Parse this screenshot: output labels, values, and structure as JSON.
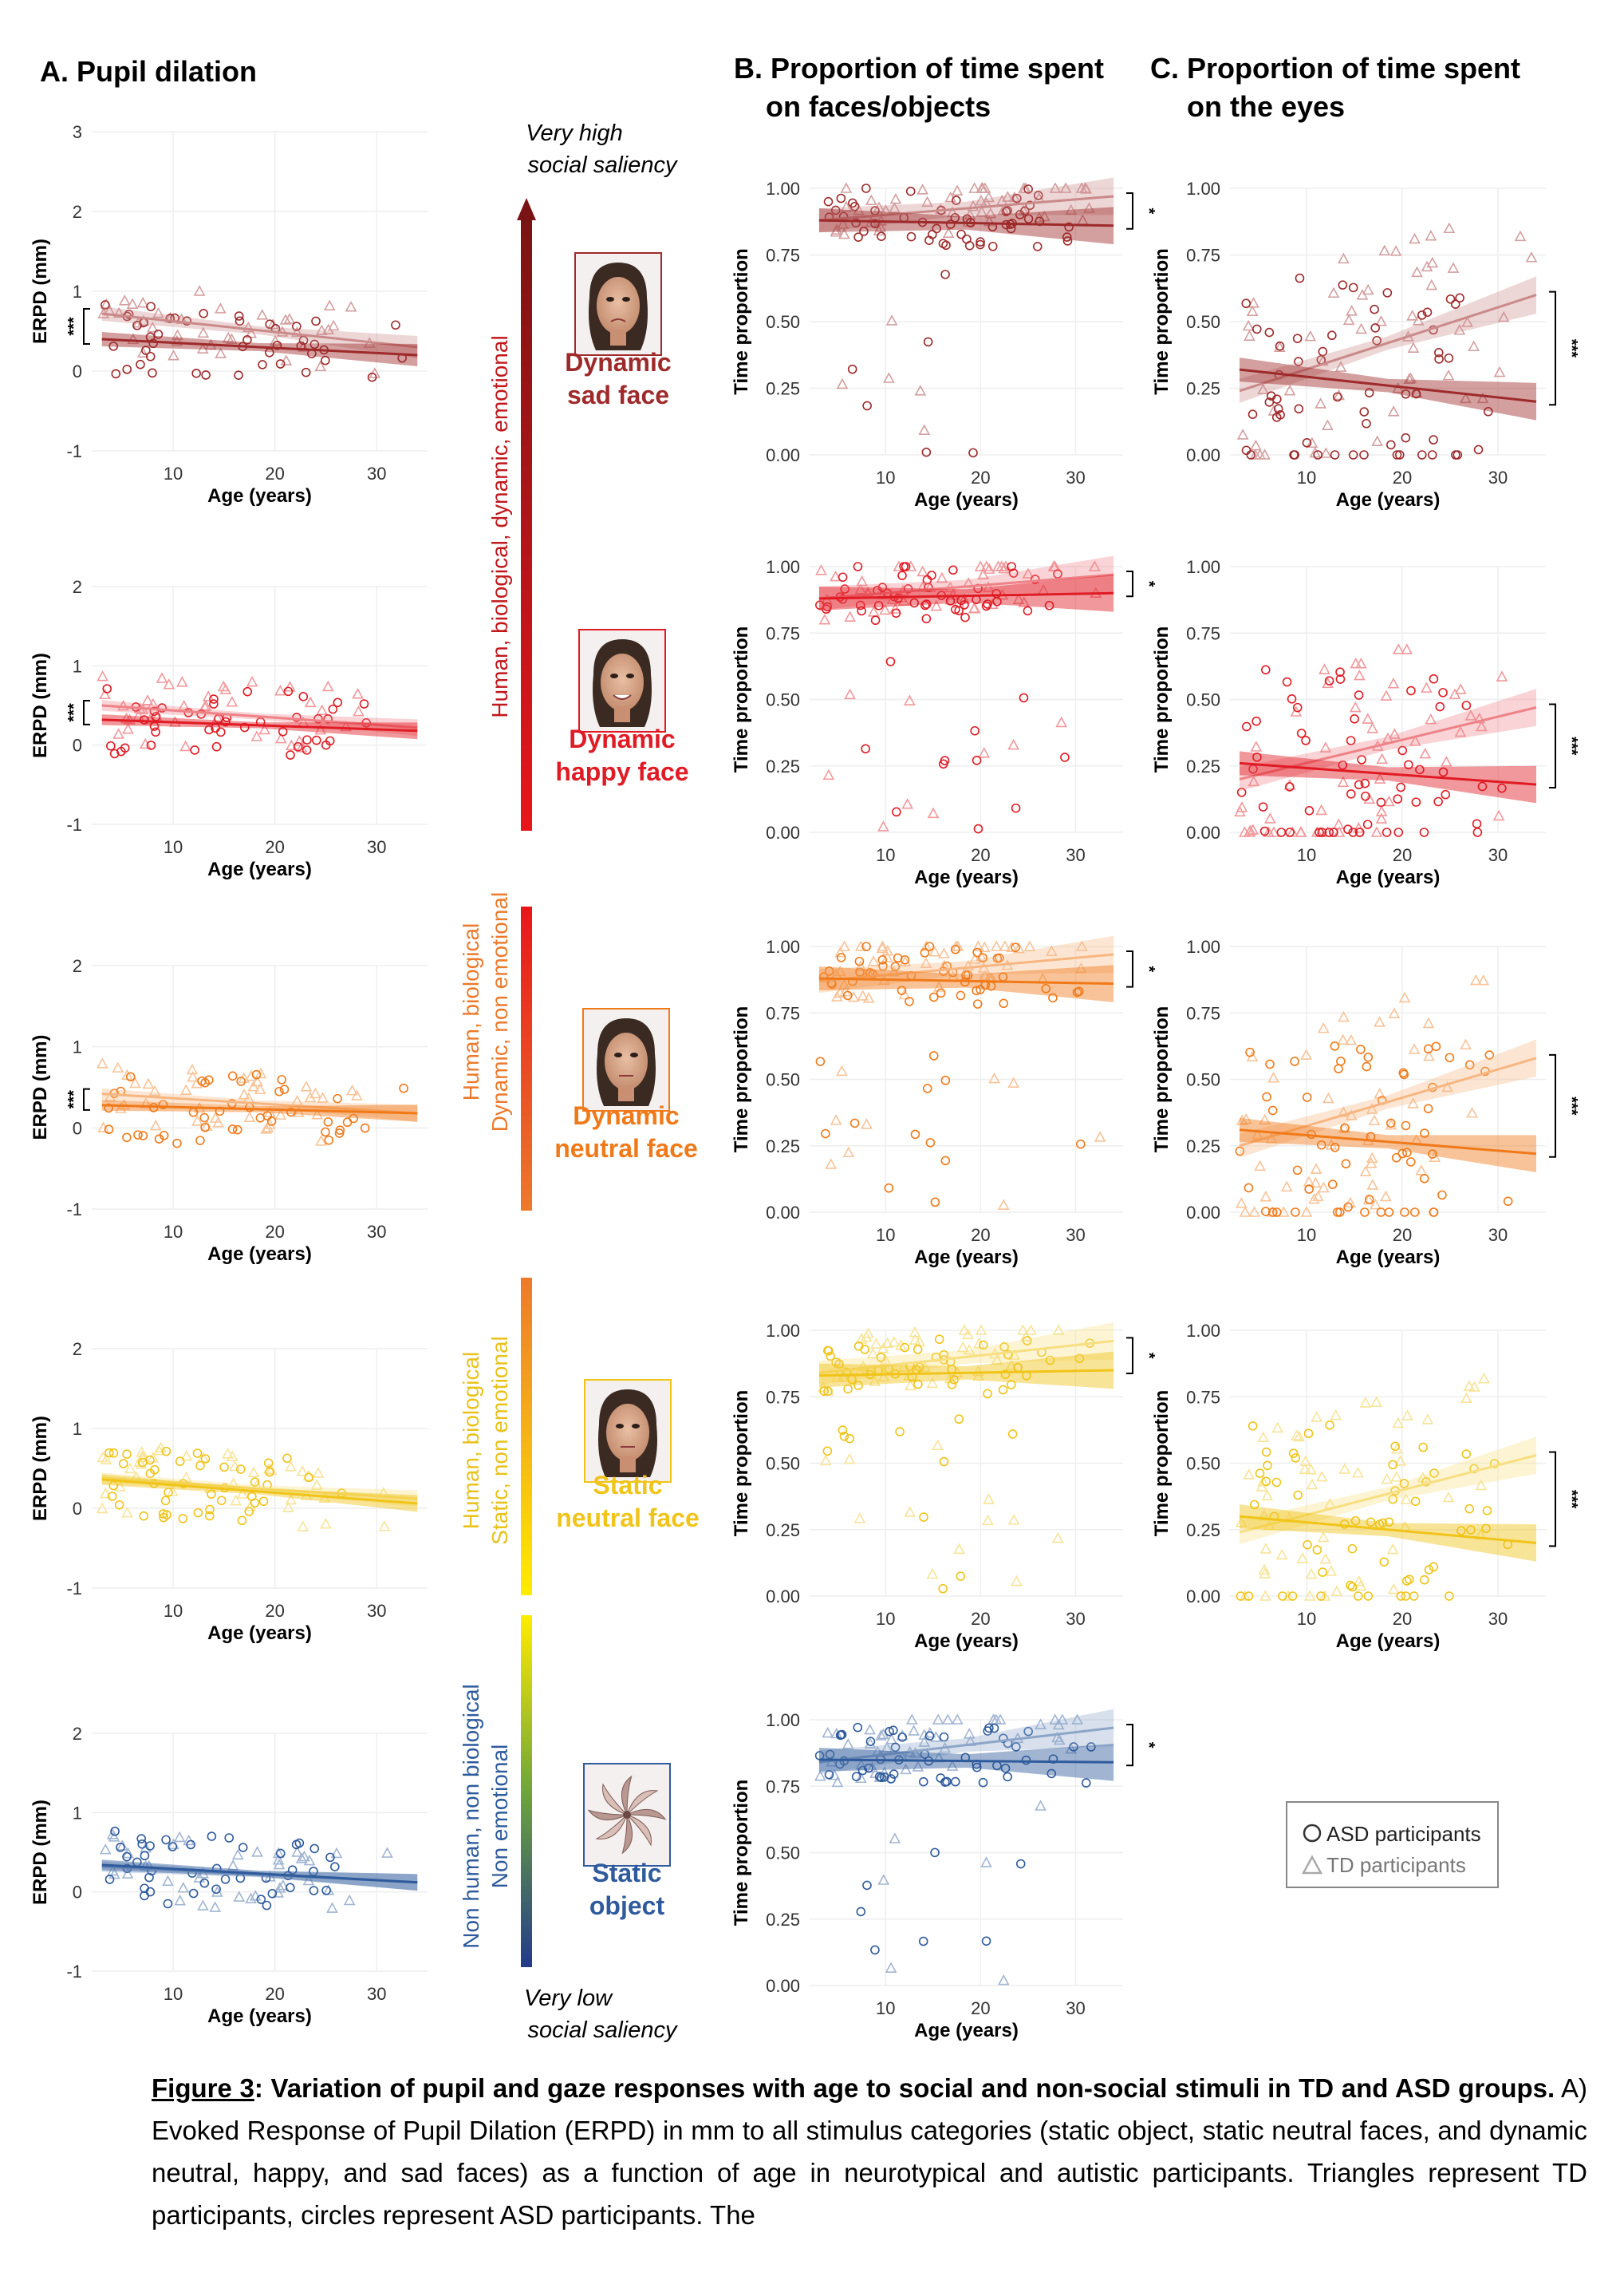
{
  "titles": {
    "a": "A. Pupil dilation",
    "b_line1": "B. Proportion of time spent",
    "b_line2": "on faces/objects",
    "c_line1": "C. Proportion of time spent",
    "c_line2": "on the eyes"
  },
  "axes": {
    "age_label": "Age (years)",
    "erpd_label": "ERPD (mm)",
    "time_label": "Time proportion",
    "age_ticks": [
      "10",
      "20",
      "30"
    ],
    "erpd_ticks": [
      "-1",
      "0",
      "1",
      "2",
      "3"
    ],
    "time_ticks": [
      "0.00",
      "0.25",
      "0.50",
      "0.75",
      "1.00"
    ]
  },
  "axis_ranges": {
    "age": [
      2,
      35
    ],
    "time": [
      0,
      1
    ]
  },
  "saliency": {
    "top_line1": "Very high",
    "top_line2": "social saliency",
    "bottom_line1": "Very low",
    "bottom_line2": "social saliency",
    "bar_labels": [
      [
        "Human, biological, dynamic, emotional"
      ],
      [
        "Human, biological",
        "Dynamic, non emotional"
      ],
      [
        "Human, biological",
        "Static, non emotional"
      ],
      [
        "Non human, non biological",
        "Non emotional"
      ]
    ]
  },
  "stimuli": [
    {
      "line1": "Dynamic",
      "line2": "sad face",
      "color": "#9e2a2b",
      "icon": "sad-face-icon"
    },
    {
      "line1": "Dynamic",
      "line2": "happy face",
      "color": "#e01b24",
      "icon": "happy-face-icon"
    },
    {
      "line1": "Dynamic",
      "line2": "neutral face",
      "color": "#f07a1a",
      "icon": "neutral-face-icon"
    },
    {
      "line1": "Static",
      "line2": "neutral face",
      "color": "#f0c419",
      "icon": "static-face-icon"
    },
    {
      "line1": "Static",
      "line2": "object",
      "color": "#2f5b9c",
      "icon": "pinwheel-icon"
    }
  ],
  "legend": {
    "asd": "ASD participants",
    "td": "TD participants"
  },
  "caption": {
    "label": "Figure 3",
    "bold": ": Variation of pupil and gaze responses with age to social and non-social stimuli in TD and ASD groups.",
    "text": " A) Evoked Response of Pupil Dilation (ERPD) in mm to all stimulus categories (static object, static neutral faces, and dynamic neutral, happy, and sad faces) as a function of age in neurotypical and autistic participants. Triangles represent TD participants, circles represent ASD participants. The"
  },
  "chart_data": [
    {
      "type": "scatter",
      "panel": "A",
      "stimulus": "Dynamic sad face",
      "ylabel": "ERPD (mm)",
      "xlabel": "Age (years)",
      "ylim": [
        -1,
        3
      ],
      "x_ticks": [
        10,
        20,
        30
      ],
      "y_ticks": [
        -1,
        0,
        1,
        2,
        3
      ],
      "significance": "***",
      "series": [
        {
          "name": "TD participants",
          "marker": "triangle",
          "fit": [
            [
              3,
              0.72
            ],
            [
              34,
              0.3
            ]
          ]
        },
        {
          "name": "ASD participants",
          "marker": "circle",
          "fit": [
            [
              3,
              0.4
            ],
            [
              34,
              0.2
            ]
          ]
        }
      ]
    },
    {
      "type": "scatter",
      "panel": "A",
      "stimulus": "Dynamic happy face",
      "ylabel": "ERPD (mm)",
      "xlabel": "Age (years)",
      "ylim": [
        -1,
        2
      ],
      "x_ticks": [
        10,
        20,
        30
      ],
      "y_ticks": [
        -1,
        0,
        1,
        2
      ],
      "significance": "***",
      "series": [
        {
          "name": "TD participants",
          "marker": "triangle",
          "fit": [
            [
              3,
              0.5
            ],
            [
              34,
              0.22
            ]
          ]
        },
        {
          "name": "ASD participants",
          "marker": "circle",
          "fit": [
            [
              3,
              0.32
            ],
            [
              34,
              0.18
            ]
          ]
        }
      ]
    },
    {
      "type": "scatter",
      "panel": "A",
      "stimulus": "Dynamic neutral face",
      "ylabel": "ERPD (mm)",
      "xlabel": "Age (years)",
      "ylim": [
        -1,
        2
      ],
      "x_ticks": [
        10,
        20,
        30
      ],
      "y_ticks": [
        -1,
        0,
        1,
        2
      ],
      "significance": "***",
      "series": [
        {
          "name": "TD participants",
          "marker": "triangle",
          "fit": [
            [
              3,
              0.42
            ],
            [
              34,
              0.18
            ]
          ]
        },
        {
          "name": "ASD participants",
          "marker": "circle",
          "fit": [
            [
              3,
              0.28
            ],
            [
              34,
              0.18
            ]
          ]
        }
      ]
    },
    {
      "type": "scatter",
      "panel": "A",
      "stimulus": "Static neutral face",
      "ylabel": "ERPD (mm)",
      "xlabel": "Age (years)",
      "ylim": [
        -1,
        2
      ],
      "x_ticks": [
        10,
        20,
        30
      ],
      "y_ticks": [
        -1,
        0,
        1,
        2
      ],
      "significance": "",
      "series": [
        {
          "name": "TD participants",
          "marker": "triangle",
          "fit": [
            [
              3,
              0.38
            ],
            [
              34,
              0.12
            ]
          ]
        },
        {
          "name": "ASD participants",
          "marker": "circle",
          "fit": [
            [
              3,
              0.36
            ],
            [
              34,
              0.06
            ]
          ]
        }
      ]
    },
    {
      "type": "scatter",
      "panel": "A",
      "stimulus": "Static object",
      "ylabel": "ERPD (mm)",
      "xlabel": "Age (years)",
      "ylim": [
        -1,
        2
      ],
      "x_ticks": [
        10,
        20,
        30
      ],
      "y_ticks": [
        -1,
        0,
        1,
        2
      ],
      "significance": "",
      "series": [
        {
          "name": "TD participants",
          "marker": "triangle",
          "fit": [
            [
              3,
              0.32
            ],
            [
              34,
              0.12
            ]
          ]
        },
        {
          "name": "ASD participants",
          "marker": "circle",
          "fit": [
            [
              3,
              0.34
            ],
            [
              34,
              0.12
            ]
          ]
        }
      ]
    },
    {
      "type": "scatter",
      "panel": "B",
      "stimulus": "Dynamic sad face",
      "ylabel": "Time proportion",
      "xlabel": "Age (years)",
      "ylim": [
        0,
        1
      ],
      "x_ticks": [
        10,
        20,
        30
      ],
      "y_ticks": [
        0,
        0.25,
        0.5,
        0.75,
        1.0
      ],
      "significance": "*",
      "series": [
        {
          "name": "TD participants",
          "marker": "triangle",
          "fit": [
            [
              3,
              0.88
            ],
            [
              34,
              0.97
            ]
          ]
        },
        {
          "name": "ASD participants",
          "marker": "circle",
          "fit": [
            [
              3,
              0.88
            ],
            [
              34,
              0.86
            ]
          ]
        }
      ]
    },
    {
      "type": "scatter",
      "panel": "B",
      "stimulus": "Dynamic happy face",
      "ylabel": "Time proportion",
      "xlabel": "Age (years)",
      "ylim": [
        0,
        1
      ],
      "x_ticks": [
        10,
        20,
        30
      ],
      "y_ticks": [
        0,
        0.25,
        0.5,
        0.75,
        1.0
      ],
      "significance": "*",
      "series": [
        {
          "name": "TD participants",
          "marker": "triangle",
          "fit": [
            [
              3,
              0.88
            ],
            [
              34,
              0.97
            ]
          ]
        },
        {
          "name": "ASD participants",
          "marker": "circle",
          "fit": [
            [
              3,
              0.88
            ],
            [
              34,
              0.9
            ]
          ]
        }
      ]
    },
    {
      "type": "scatter",
      "panel": "B",
      "stimulus": "Dynamic neutral face",
      "ylabel": "Time proportion",
      "xlabel": "Age (years)",
      "ylim": [
        0,
        1
      ],
      "x_ticks": [
        10,
        20,
        30
      ],
      "y_ticks": [
        0,
        0.25,
        0.5,
        0.75,
        1.0
      ],
      "significance": "*",
      "series": [
        {
          "name": "TD participants",
          "marker": "triangle",
          "fit": [
            [
              3,
              0.87
            ],
            [
              34,
              0.97
            ]
          ]
        },
        {
          "name": "ASD participants",
          "marker": "circle",
          "fit": [
            [
              3,
              0.88
            ],
            [
              34,
              0.86
            ]
          ]
        }
      ]
    },
    {
      "type": "scatter",
      "panel": "B",
      "stimulus": "Static neutral face",
      "ylabel": "Time proportion",
      "xlabel": "Age (years)",
      "ylim": [
        0,
        1
      ],
      "x_ticks": [
        10,
        20,
        30
      ],
      "y_ticks": [
        0,
        0.25,
        0.5,
        0.75,
        1.0
      ],
      "significance": "*",
      "series": [
        {
          "name": "TD participants",
          "marker": "triangle",
          "fit": [
            [
              3,
              0.84
            ],
            [
              34,
              0.96
            ]
          ]
        },
        {
          "name": "ASD participants",
          "marker": "circle",
          "fit": [
            [
              3,
              0.83
            ],
            [
              34,
              0.85
            ]
          ]
        }
      ]
    },
    {
      "type": "scatter",
      "panel": "B",
      "stimulus": "Static object",
      "ylabel": "Time proportion",
      "xlabel": "Age (years)",
      "ylim": [
        0,
        1
      ],
      "x_ticks": [
        10,
        20,
        30
      ],
      "y_ticks": [
        0,
        0.25,
        0.5,
        0.75,
        1.0
      ],
      "significance": "*",
      "series": [
        {
          "name": "TD participants",
          "marker": "triangle",
          "fit": [
            [
              3,
              0.84
            ],
            [
              34,
              0.97
            ]
          ]
        },
        {
          "name": "ASD participants",
          "marker": "circle",
          "fit": [
            [
              3,
              0.85
            ],
            [
              34,
              0.84
            ]
          ]
        }
      ]
    },
    {
      "type": "scatter",
      "panel": "C",
      "stimulus": "Dynamic sad face",
      "ylabel": "Time proportion",
      "xlabel": "Age (years)",
      "ylim": [
        0,
        1
      ],
      "x_ticks": [
        10,
        20,
        30
      ],
      "y_ticks": [
        0,
        0.25,
        0.5,
        0.75,
        1.0
      ],
      "significance": "***",
      "series": [
        {
          "name": "TD participants",
          "marker": "triangle",
          "fit": [
            [
              3,
              0.24
            ],
            [
              34,
              0.6
            ]
          ]
        },
        {
          "name": "ASD participants",
          "marker": "circle",
          "fit": [
            [
              3,
              0.32
            ],
            [
              34,
              0.2
            ]
          ]
        }
      ]
    },
    {
      "type": "scatter",
      "panel": "C",
      "stimulus": "Dynamic happy face",
      "ylabel": "Time proportion",
      "xlabel": "Age (years)",
      "ylim": [
        0,
        1
      ],
      "x_ticks": [
        10,
        20,
        30
      ],
      "y_ticks": [
        0,
        0.25,
        0.5,
        0.75,
        1.0
      ],
      "significance": "***",
      "series": [
        {
          "name": "TD participants",
          "marker": "triangle",
          "fit": [
            [
              3,
              0.2
            ],
            [
              34,
              0.47
            ]
          ]
        },
        {
          "name": "ASD participants",
          "marker": "circle",
          "fit": [
            [
              3,
              0.26
            ],
            [
              34,
              0.18
            ]
          ]
        }
      ]
    },
    {
      "type": "scatter",
      "panel": "C",
      "stimulus": "Dynamic neutral face",
      "ylabel": "Time proportion",
      "xlabel": "Age (years)",
      "ylim": [
        0,
        1
      ],
      "x_ticks": [
        10,
        20,
        30
      ],
      "y_ticks": [
        0,
        0.25,
        0.5,
        0.75,
        1.0
      ],
      "significance": "***",
      "series": [
        {
          "name": "TD participants",
          "marker": "triangle",
          "fit": [
            [
              3,
              0.25
            ],
            [
              34,
              0.58
            ]
          ]
        },
        {
          "name": "ASD participants",
          "marker": "circle",
          "fit": [
            [
              3,
              0.31
            ],
            [
              34,
              0.22
            ]
          ]
        }
      ]
    },
    {
      "type": "scatter",
      "panel": "C",
      "stimulus": "Static neutral face",
      "ylabel": "Time proportion",
      "xlabel": "Age (years)",
      "ylim": [
        0,
        1
      ],
      "x_ticks": [
        10,
        20,
        30
      ],
      "y_ticks": [
        0,
        0.25,
        0.5,
        0.75,
        1.0
      ],
      "significance": "***",
      "series": [
        {
          "name": "TD participants",
          "marker": "triangle",
          "fit": [
            [
              3,
              0.24
            ],
            [
              34,
              0.53
            ]
          ]
        },
        {
          "name": "ASD participants",
          "marker": "circle",
          "fit": [
            [
              3,
              0.3
            ],
            [
              34,
              0.2
            ]
          ]
        }
      ]
    }
  ]
}
